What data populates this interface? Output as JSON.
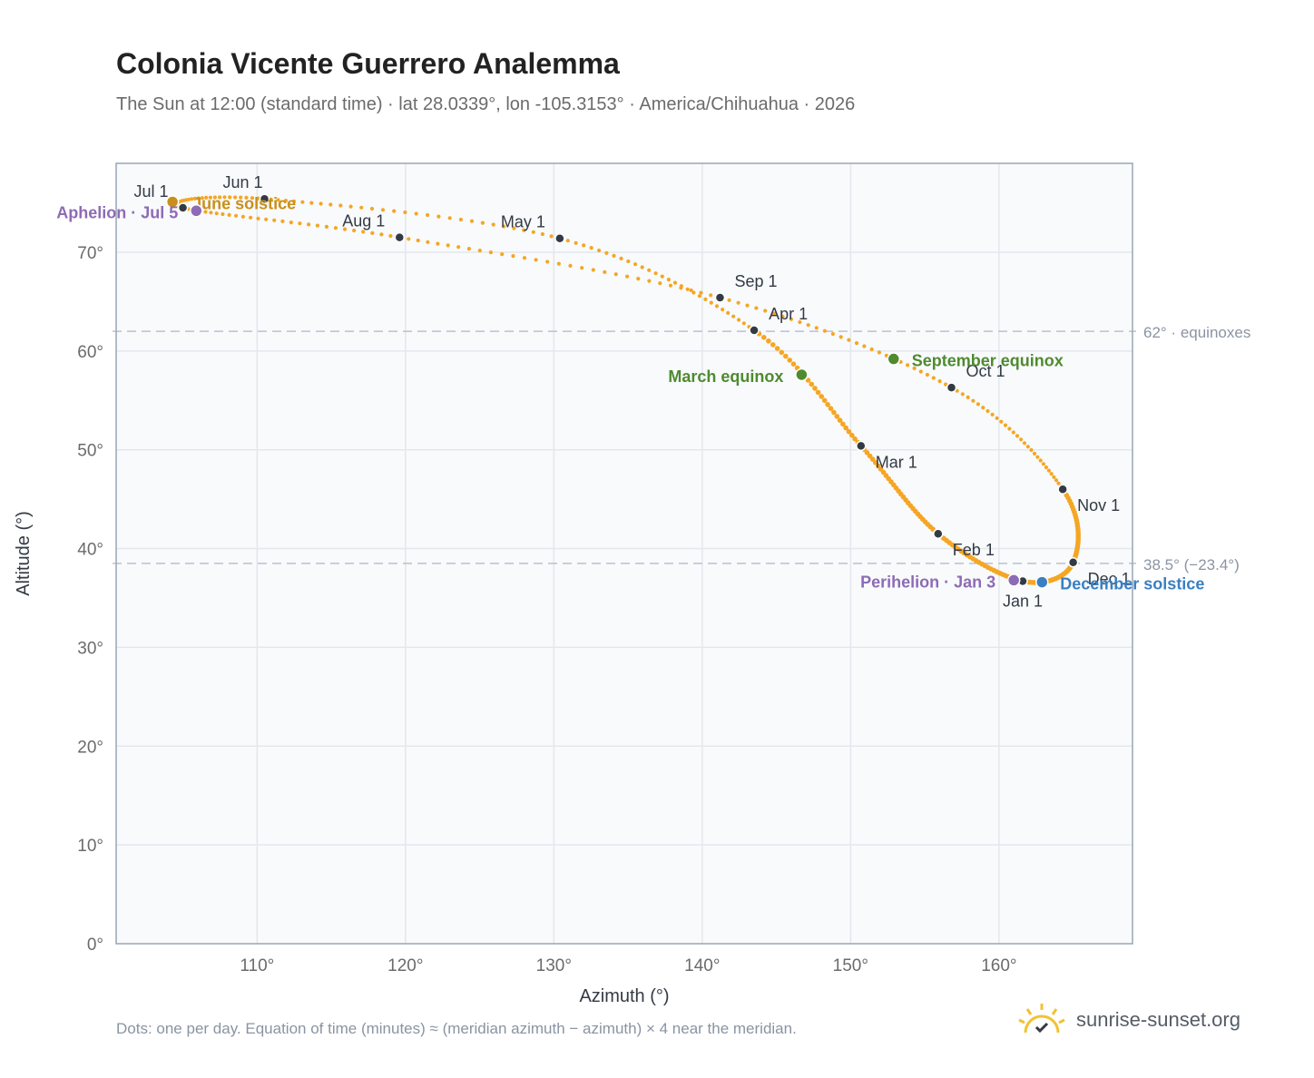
{
  "title": "Colonia Vicente Guerrero Analemma",
  "subtitle": "The Sun at 12:00 (standard time) · lat 28.0339°, lon -105.3153° · America/Chihuahua · 2026",
  "footnote": "Dots: one per day. Equation of time (minutes) ≈ (meridian azimuth − azimuth) × 4 near the meridian.",
  "brand": {
    "name": "sunrise-sunset.org",
    "icon": "sun-logo-icon"
  },
  "colors": {
    "path": "#f5a623",
    "month_marker": "#333a44",
    "equinox": "#4f8a2f",
    "solstice_june": "#c8901a",
    "solstice_december": "#3a7fc1",
    "apsis": "#8e6bb5",
    "ref_line": "#b8c2cf",
    "grid": "#e3e8ee",
    "plot_bg": "#f8fafc",
    "frame": "#9aa5b5"
  },
  "chart_data": {
    "type": "scatter",
    "xlabel": "Azimuth (°)",
    "ylabel": "Altitude (°)",
    "xlim": [
      100.5,
      169
    ],
    "ylim": [
      0,
      79
    ],
    "xticks": [
      110,
      120,
      130,
      140,
      150,
      160
    ],
    "xtick_labels": [
      "110°",
      "120°",
      "130°",
      "140°",
      "150°",
      "160°"
    ],
    "yticks": [
      0,
      10,
      20,
      30,
      40,
      50,
      60,
      70
    ],
    "ytick_labels": [
      "0°",
      "10°",
      "20°",
      "30°",
      "40°",
      "50°",
      "60°",
      "70°"
    ],
    "grid": true,
    "reference_lines": [
      {
        "y": 62,
        "label": "62° · equinoxes"
      },
      {
        "y": 38.5,
        "label": "38.5° (−23.4°)"
      }
    ],
    "monthly_points": [
      {
        "label": "Jan 1",
        "az": 161.6,
        "alt": 36.7
      },
      {
        "label": "Feb 1",
        "az": 155.9,
        "alt": 41.5
      },
      {
        "label": "Mar 1",
        "az": 150.7,
        "alt": 50.4
      },
      {
        "label": "Apr 1",
        "az": 143.5,
        "alt": 62.1
      },
      {
        "label": "May 1",
        "az": 130.4,
        "alt": 71.4
      },
      {
        "label": "Jun 1",
        "az": 110.5,
        "alt": 75.4
      },
      {
        "label": "Jul 1",
        "az": 105.0,
        "alt": 74.5
      },
      {
        "label": "Aug 1",
        "az": 119.6,
        "alt": 71.5
      },
      {
        "label": "Sep 1",
        "az": 141.2,
        "alt": 65.4
      },
      {
        "label": "Oct 1",
        "az": 156.8,
        "alt": 56.3
      },
      {
        "label": "Nov 1",
        "az": 164.3,
        "alt": 46.0
      },
      {
        "label": "Dec 1",
        "az": 165.0,
        "alt": 38.6
      }
    ],
    "events": [
      {
        "label": "March equinox",
        "az": 146.7,
        "alt": 57.6,
        "kind": "equinox"
      },
      {
        "label": "September equinox",
        "az": 152.9,
        "alt": 59.2,
        "kind": "equinox"
      },
      {
        "label": "June solstice",
        "az": 104.3,
        "alt": 75.1,
        "kind": "solstice_june"
      },
      {
        "label": "December solstice",
        "az": 162.9,
        "alt": 36.6,
        "kind": "solstice_december"
      },
      {
        "label": "Aphelion · Jul 5",
        "az": 105.9,
        "alt": 74.2,
        "kind": "apsis"
      },
      {
        "label": "Perihelion · Jan 3",
        "az": 161.0,
        "alt": 36.8,
        "kind": "apsis"
      }
    ]
  }
}
